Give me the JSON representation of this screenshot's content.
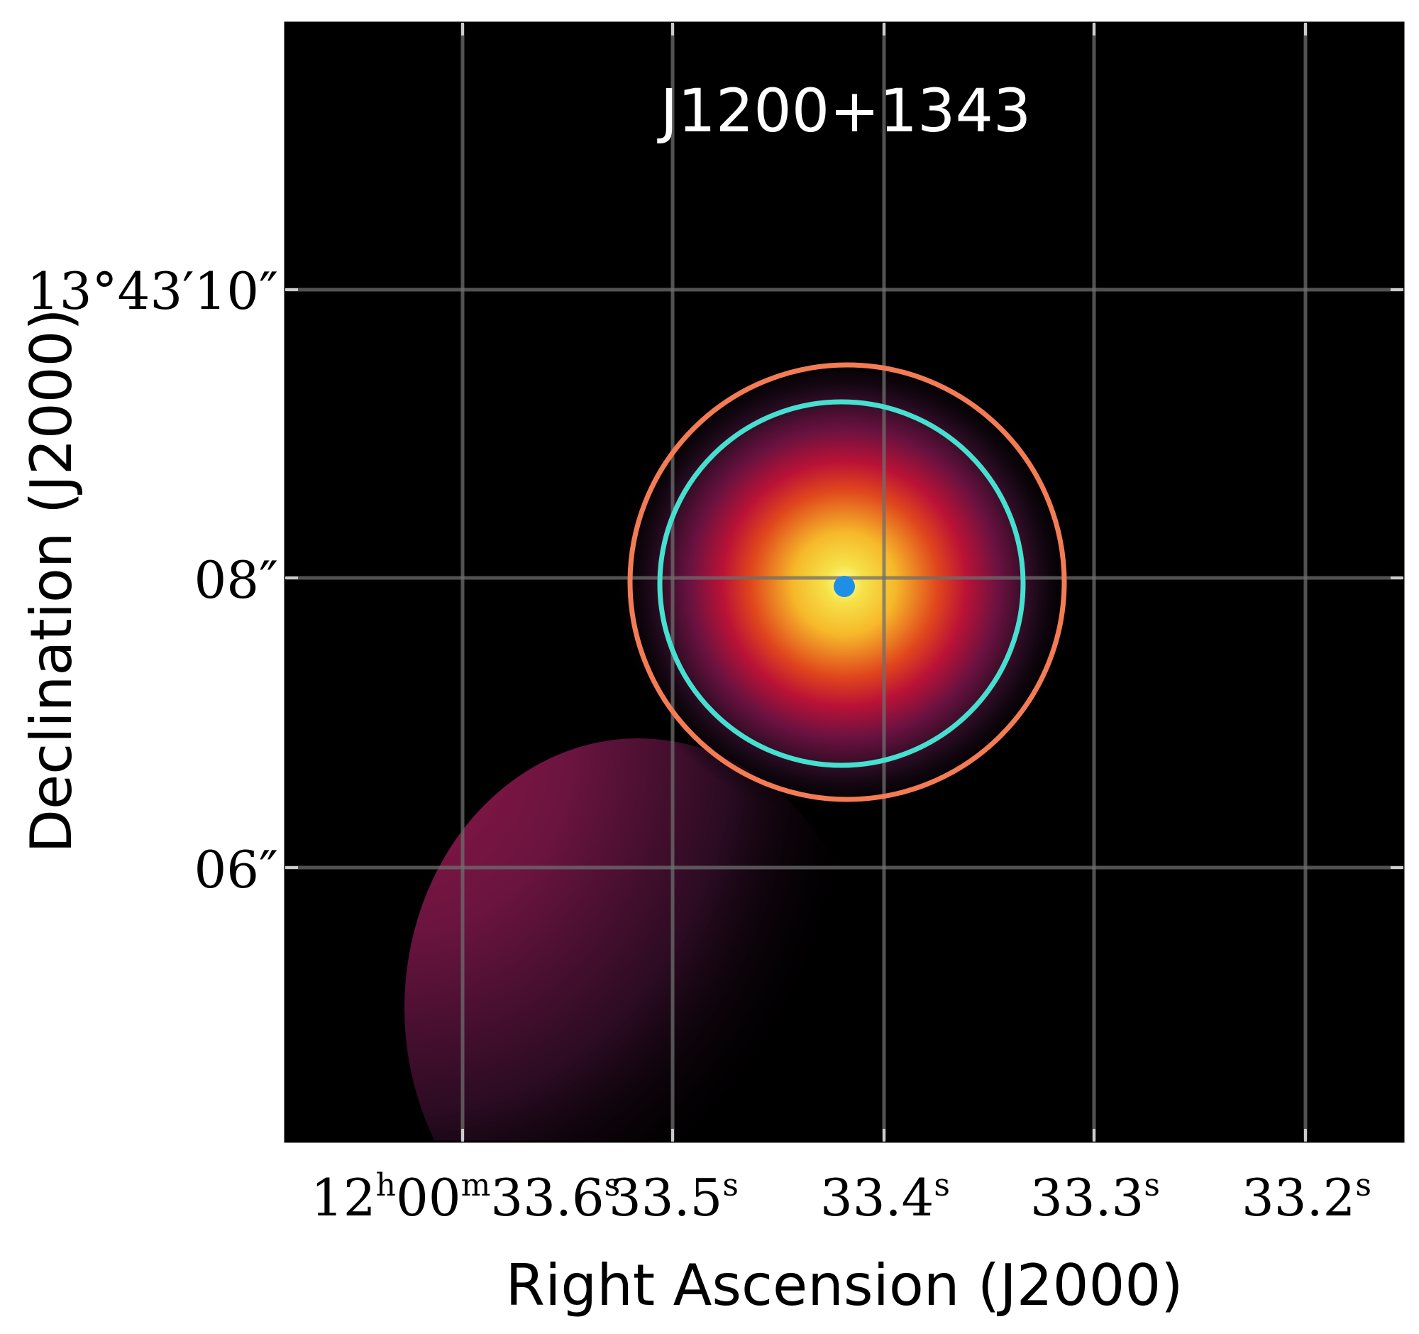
{
  "figure": {
    "title": "J1200+1343",
    "xlabel": "Right Ascension (J2000)",
    "ylabel": "Declination (J2000)",
    "ra_ticks": [
      {
        "hours": "12",
        "h_unit": "h",
        "minutes": "00",
        "m_unit": "m",
        "seconds": "33.6",
        "s_unit": "s"
      },
      {
        "seconds": "33.5",
        "s_unit": "s"
      },
      {
        "seconds": "33.4",
        "s_unit": "s"
      },
      {
        "seconds": "33.3",
        "s_unit": "s"
      },
      {
        "seconds": "33.2",
        "s_unit": "s"
      }
    ],
    "dec_ticks": [
      {
        "label": "13°43′10″"
      },
      {
        "label": "08″"
      },
      {
        "label": "06″"
      }
    ],
    "colors": {
      "background": "#000000",
      "grid": "#6e6e6e",
      "outer_circle": "#f47c55",
      "inner_circle": "#45e0d0",
      "core_marker": "#1e8fe6",
      "title_text": "#ffffff"
    },
    "colormap": "inferno-like"
  }
}
